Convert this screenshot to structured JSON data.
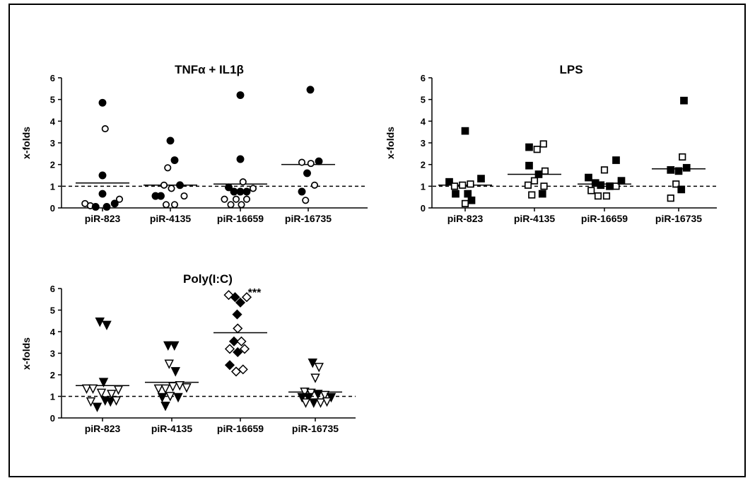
{
  "chart_data": [
    {
      "type": "scatter",
      "title": "TNFα + IL1β",
      "ylabel": "x-folds",
      "ylim": [
        0,
        6
      ],
      "yticks": [
        0,
        1,
        2,
        3,
        4,
        5,
        6
      ],
      "categories": [
        "piR-823",
        "piR-4135",
        "piR-16659",
        "piR-16735"
      ],
      "marker": "circle",
      "reference_line": 1,
      "points": [
        [
          {
            "x": -0.33,
            "y": 0.2,
            "fill": "open"
          },
          {
            "x": -0.23,
            "y": 0.1,
            "fill": "open"
          },
          {
            "x": -0.13,
            "y": 0.05,
            "fill": "filled"
          },
          {
            "x": 0.0,
            "y": 4.85,
            "fill": "filled"
          },
          {
            "x": 0.0,
            "y": 1.5,
            "fill": "filled"
          },
          {
            "x": 0.0,
            "y": 0.65,
            "fill": "filled"
          },
          {
            "x": 0.05,
            "y": 3.65,
            "fill": "open"
          },
          {
            "x": 0.08,
            "y": 0.05,
            "fill": "filled"
          },
          {
            "x": 0.23,
            "y": 0.2,
            "fill": "filled"
          },
          {
            "x": 0.32,
            "y": 0.4,
            "fill": "open"
          }
        ],
        [
          {
            "x": 0.0,
            "y": 3.1,
            "fill": "filled"
          },
          {
            "x": 0.08,
            "y": 2.2,
            "fill": "filled"
          },
          {
            "x": -0.05,
            "y": 1.85,
            "fill": "open"
          },
          {
            "x": -0.12,
            "y": 1.05,
            "fill": "open"
          },
          {
            "x": 0.02,
            "y": 0.9,
            "fill": "open"
          },
          {
            "x": 0.18,
            "y": 1.05,
            "fill": "filled"
          },
          {
            "x": -0.28,
            "y": 0.55,
            "fill": "filled"
          },
          {
            "x": -0.18,
            "y": 0.55,
            "fill": "filled"
          },
          {
            "x": 0.26,
            "y": 0.55,
            "fill": "open"
          },
          {
            "x": -0.08,
            "y": 0.15,
            "fill": "open"
          },
          {
            "x": 0.08,
            "y": 0.15,
            "fill": "open"
          }
        ],
        [
          {
            "x": 0.0,
            "y": 5.2,
            "fill": "filled"
          },
          {
            "x": 0.0,
            "y": 2.25,
            "fill": "filled"
          },
          {
            "x": 0.05,
            "y": 1.2,
            "fill": "open"
          },
          {
            "x": -0.22,
            "y": 0.95,
            "fill": "filled"
          },
          {
            "x": -0.12,
            "y": 0.75,
            "fill": "filled"
          },
          {
            "x": 0.0,
            "y": 0.75,
            "fill": "filled"
          },
          {
            "x": 0.12,
            "y": 0.75,
            "fill": "filled"
          },
          {
            "x": 0.24,
            "y": 0.9,
            "fill": "open"
          },
          {
            "x": -0.3,
            "y": 0.4,
            "fill": "open"
          },
          {
            "x": -0.08,
            "y": 0.4,
            "fill": "open"
          },
          {
            "x": 0.12,
            "y": 0.4,
            "fill": "open"
          },
          {
            "x": -0.18,
            "y": 0.15,
            "fill": "open"
          },
          {
            "x": 0.02,
            "y": 0.15,
            "fill": "open"
          }
        ],
        [
          {
            "x": 0.04,
            "y": 5.45,
            "fill": "filled"
          },
          {
            "x": -0.12,
            "y": 2.1,
            "fill": "open"
          },
          {
            "x": 0.05,
            "y": 2.05,
            "fill": "open"
          },
          {
            "x": 0.2,
            "y": 2.15,
            "fill": "filled"
          },
          {
            "x": -0.02,
            "y": 1.6,
            "fill": "filled"
          },
          {
            "x": 0.12,
            "y": 1.05,
            "fill": "open"
          },
          {
            "x": -0.12,
            "y": 0.75,
            "fill": "filled"
          },
          {
            "x": -0.05,
            "y": 0.35,
            "fill": "open"
          }
        ]
      ],
      "means": [
        1.15,
        1.05,
        1.1,
        2.0
      ]
    },
    {
      "type": "scatter",
      "title": "LPS",
      "ylabel": "x-folds",
      "ylim": [
        0,
        6
      ],
      "yticks": [
        0,
        1,
        2,
        3,
        4,
        5,
        6
      ],
      "categories": [
        "piR-823",
        "piR-4135",
        "piR-16659",
        "piR-16735"
      ],
      "marker": "square",
      "reference_line": 1,
      "points": [
        [
          {
            "x": 0.0,
            "y": 3.55,
            "fill": "filled"
          },
          {
            "x": -0.3,
            "y": 1.2,
            "fill": "filled"
          },
          {
            "x": 0.3,
            "y": 1.35,
            "fill": "filled"
          },
          {
            "x": -0.2,
            "y": 1.0,
            "fill": "open"
          },
          {
            "x": -0.05,
            "y": 1.05,
            "fill": "open"
          },
          {
            "x": 0.1,
            "y": 1.1,
            "fill": "open"
          },
          {
            "x": -0.18,
            "y": 0.65,
            "fill": "filled"
          },
          {
            "x": 0.05,
            "y": 0.65,
            "fill": "filled"
          },
          {
            "x": 0.0,
            "y": 0.2,
            "fill": "open"
          },
          {
            "x": 0.12,
            "y": 0.35,
            "fill": "filled"
          }
        ],
        [
          {
            "x": -0.1,
            "y": 2.8,
            "fill": "filled"
          },
          {
            "x": 0.05,
            "y": 2.7,
            "fill": "open"
          },
          {
            "x": 0.17,
            "y": 2.95,
            "fill": "open"
          },
          {
            "x": -0.1,
            "y": 1.95,
            "fill": "filled"
          },
          {
            "x": 0.08,
            "y": 1.55,
            "fill": "filled"
          },
          {
            "x": 0.2,
            "y": 1.7,
            "fill": "open"
          },
          {
            "x": -0.12,
            "y": 1.05,
            "fill": "open"
          },
          {
            "x": 0.0,
            "y": 1.25,
            "fill": "open"
          },
          {
            "x": 0.18,
            "y": 1.0,
            "fill": "open"
          },
          {
            "x": -0.05,
            "y": 0.6,
            "fill": "open"
          },
          {
            "x": 0.15,
            "y": 0.65,
            "fill": "filled"
          }
        ],
        [
          {
            "x": 0.22,
            "y": 2.2,
            "fill": "filled"
          },
          {
            "x": 0.0,
            "y": 1.75,
            "fill": "open"
          },
          {
            "x": -0.3,
            "y": 1.4,
            "fill": "filled"
          },
          {
            "x": -0.17,
            "y": 1.15,
            "fill": "filled"
          },
          {
            "x": -0.07,
            "y": 1.05,
            "fill": "filled"
          },
          {
            "x": 0.1,
            "y": 1.0,
            "fill": "filled"
          },
          {
            "x": 0.22,
            "y": 1.0,
            "fill": "open"
          },
          {
            "x": 0.32,
            "y": 1.25,
            "fill": "filled"
          },
          {
            "x": -0.25,
            "y": 0.8,
            "fill": "open"
          },
          {
            "x": -0.12,
            "y": 0.55,
            "fill": "open"
          },
          {
            "x": 0.04,
            "y": 0.55,
            "fill": "open"
          }
        ],
        [
          {
            "x": 0.1,
            "y": 4.95,
            "fill": "filled"
          },
          {
            "x": 0.07,
            "y": 2.35,
            "fill": "open"
          },
          {
            "x": -0.15,
            "y": 1.75,
            "fill": "filled"
          },
          {
            "x": 0.0,
            "y": 1.7,
            "fill": "filled"
          },
          {
            "x": 0.15,
            "y": 1.85,
            "fill": "filled"
          },
          {
            "x": -0.05,
            "y": 1.1,
            "fill": "open"
          },
          {
            "x": 0.05,
            "y": 0.85,
            "fill": "filled"
          },
          {
            "x": -0.15,
            "y": 0.45,
            "fill": "open"
          }
        ]
      ],
      "means": [
        1.05,
        1.55,
        1.1,
        1.8
      ]
    },
    {
      "type": "scatter",
      "title": "Poly(I:C)",
      "ylabel": "x-folds",
      "ylim": [
        0,
        6
      ],
      "yticks": [
        0,
        1,
        2,
        3,
        4,
        5,
        6
      ],
      "categories": [
        "piR-823",
        "piR-4135",
        "piR-16659",
        "piR-16735"
      ],
      "marker_by_group": [
        "triangle-down",
        "triangle-down",
        "diamond",
        "triangle-down"
      ],
      "reference_line": 1,
      "annotation": {
        "text": "***",
        "category": 2,
        "y": 5.9
      },
      "points": [
        [
          {
            "x": -0.05,
            "y": 4.45,
            "fill": "filled"
          },
          {
            "x": 0.08,
            "y": 4.3,
            "fill": "filled"
          },
          {
            "x": 0.02,
            "y": 1.65,
            "fill": "filled"
          },
          {
            "x": -0.3,
            "y": 1.35,
            "fill": "open"
          },
          {
            "x": -0.18,
            "y": 1.35,
            "fill": "open"
          },
          {
            "x": -0.02,
            "y": 1.15,
            "fill": "open"
          },
          {
            "x": 0.17,
            "y": 1.1,
            "fill": "open"
          },
          {
            "x": 0.3,
            "y": 1.3,
            "fill": "open"
          },
          {
            "x": -0.22,
            "y": 0.75,
            "fill": "open"
          },
          {
            "x": -0.1,
            "y": 0.5,
            "fill": "filled"
          },
          {
            "x": 0.05,
            "y": 0.8,
            "fill": "filled"
          },
          {
            "x": 0.15,
            "y": 0.75,
            "fill": "filled"
          },
          {
            "x": 0.26,
            "y": 0.8,
            "fill": "open"
          }
        ],
        [
          {
            "x": -0.07,
            "y": 3.35,
            "fill": "filled"
          },
          {
            "x": 0.05,
            "y": 3.35,
            "fill": "filled"
          },
          {
            "x": -0.05,
            "y": 2.5,
            "fill": "open"
          },
          {
            "x": 0.07,
            "y": 2.15,
            "fill": "filled"
          },
          {
            "x": -0.25,
            "y": 1.35,
            "fill": "open"
          },
          {
            "x": -0.12,
            "y": 1.35,
            "fill": "open"
          },
          {
            "x": 0.02,
            "y": 1.45,
            "fill": "open"
          },
          {
            "x": 0.15,
            "y": 1.5,
            "fill": "open"
          },
          {
            "x": 0.28,
            "y": 1.4,
            "fill": "open"
          },
          {
            "x": -0.18,
            "y": 0.95,
            "fill": "filled"
          },
          {
            "x": -0.03,
            "y": 1.0,
            "fill": "open"
          },
          {
            "x": 0.12,
            "y": 0.95,
            "fill": "filled"
          },
          {
            "x": -0.12,
            "y": 0.55,
            "fill": "filled"
          }
        ],
        [
          {
            "x": -0.22,
            "y": 5.7,
            "fill": "open"
          },
          {
            "x": -0.1,
            "y": 5.6,
            "fill": "filled"
          },
          {
            "x": 0.0,
            "y": 5.35,
            "fill": "filled"
          },
          {
            "x": 0.12,
            "y": 5.6,
            "fill": "open"
          },
          {
            "x": -0.06,
            "y": 4.8,
            "fill": "filled"
          },
          {
            "x": -0.05,
            "y": 4.15,
            "fill": "open"
          },
          {
            "x": -0.12,
            "y": 3.55,
            "fill": "filled"
          },
          {
            "x": 0.02,
            "y": 3.55,
            "fill": "open"
          },
          {
            "x": -0.2,
            "y": 3.2,
            "fill": "open"
          },
          {
            "x": -0.05,
            "y": 3.05,
            "fill": "filled"
          },
          {
            "x": 0.08,
            "y": 3.2,
            "fill": "open"
          },
          {
            "x": -0.2,
            "y": 2.45,
            "fill": "filled"
          },
          {
            "x": -0.08,
            "y": 2.15,
            "fill": "open"
          },
          {
            "x": 0.05,
            "y": 2.25,
            "fill": "open"
          }
        ],
        [
          {
            "x": -0.05,
            "y": 2.55,
            "fill": "filled"
          },
          {
            "x": 0.07,
            "y": 2.35,
            "fill": "open"
          },
          {
            "x": 0.0,
            "y": 1.85,
            "fill": "open"
          },
          {
            "x": -0.2,
            "y": 1.2,
            "fill": "open"
          },
          {
            "x": -0.08,
            "y": 1.15,
            "fill": "open"
          },
          {
            "x": 0.05,
            "y": 1.1,
            "fill": "filled"
          },
          {
            "x": 0.18,
            "y": 1.05,
            "fill": "open"
          },
          {
            "x": -0.25,
            "y": 0.95,
            "fill": "filled"
          },
          {
            "x": -0.13,
            "y": 0.95,
            "fill": "filled"
          },
          {
            "x": 0.3,
            "y": 0.95,
            "fill": "filled"
          },
          {
            "x": -0.18,
            "y": 0.7,
            "fill": "open"
          },
          {
            "x": -0.03,
            "y": 0.7,
            "fill": "filled"
          },
          {
            "x": 0.1,
            "y": 0.7,
            "fill": "open"
          },
          {
            "x": 0.22,
            "y": 0.75,
            "fill": "open"
          }
        ]
      ],
      "means": [
        1.5,
        1.65,
        3.95,
        1.2
      ]
    }
  ]
}
